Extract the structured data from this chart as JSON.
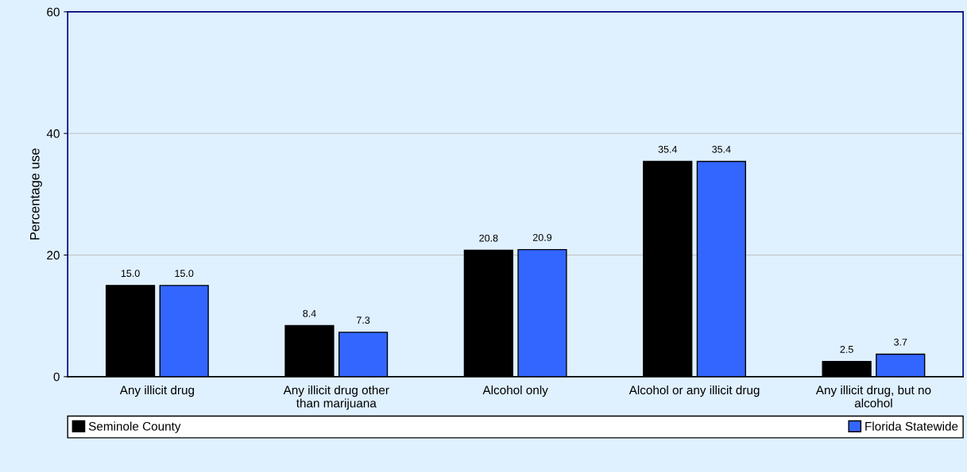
{
  "chart_data": {
    "type": "bar",
    "ylabel": "Percentage use",
    "categories": [
      "Any illicit drug",
      "Any illicit drug other\nthan marijuana",
      "Alcohol only",
      "Alcohol or any illicit drug",
      "Any illicit drug, but no\nalcohol"
    ],
    "series": [
      {
        "name": "Seminole County",
        "color": "#000000",
        "values": [
          15.0,
          8.4,
          20.8,
          35.4,
          2.5
        ],
        "value_labels": [
          "15.0",
          "8.4",
          "20.8",
          "35.4",
          "2.5"
        ]
      },
      {
        "name": "Florida Statewide",
        "color": "#3366ff",
        "values": [
          15.0,
          7.3,
          20.9,
          35.4,
          3.7
        ],
        "value_labels": [
          "15.0",
          "7.3",
          "20.9",
          "35.4",
          "3.7"
        ]
      }
    ],
    "ylim": [
      0,
      60
    ],
    "yticks": [
      0,
      20,
      40,
      60
    ],
    "grid": "y",
    "legend": "bottom"
  }
}
